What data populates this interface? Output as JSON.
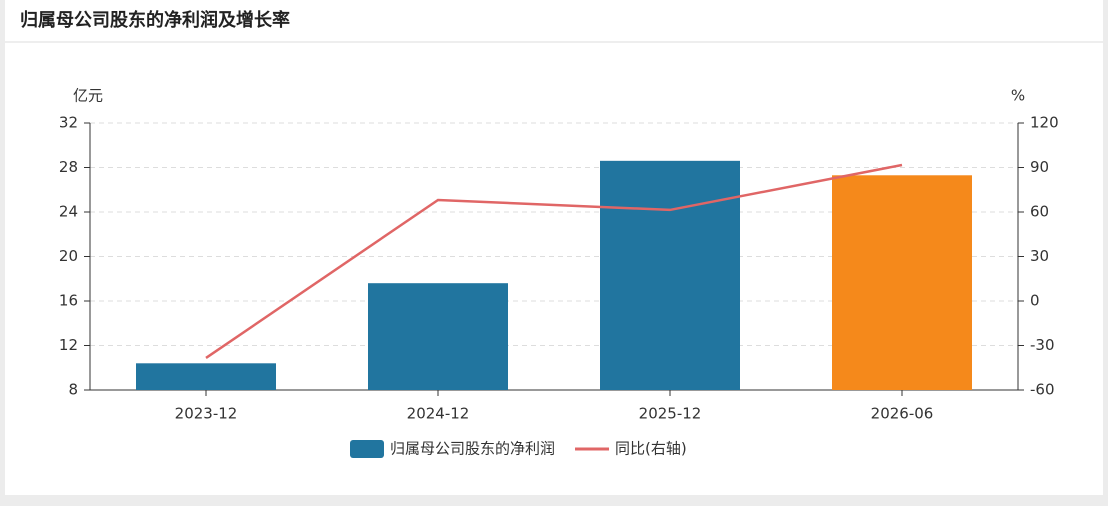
{
  "chart_data": {
    "type": "combo",
    "title": "归属母公司股东的净利润及增长率",
    "categories": [
      "2023-12",
      "2024-12",
      "2025-12",
      "2026-06"
    ],
    "series": [
      {
        "name": "归属母公司股东的净利润",
        "type": "bar",
        "color": "#21759f",
        "colors": [
          "#21759f",
          "#21759f",
          "#21759f",
          "#f5891b"
        ],
        "values": [
          10.4,
          17.6,
          28.6,
          27.3
        ]
      },
      {
        "name": "同比(右轴)",
        "type": "line",
        "axis": "y2",
        "color": "#e06666",
        "values": [
          -38.4,
          68.1,
          61.4,
          91.7
        ]
      }
    ],
    "ylabel": "亿元",
    "y2label": "%",
    "ylim": [
      8,
      32
    ],
    "yticks": [
      8,
      12,
      16,
      20,
      24,
      28,
      32
    ],
    "y2lim": [
      -60,
      120
    ],
    "y2ticks": [
      -60,
      -30,
      0,
      30,
      60,
      90,
      120
    ],
    "grid": true
  }
}
